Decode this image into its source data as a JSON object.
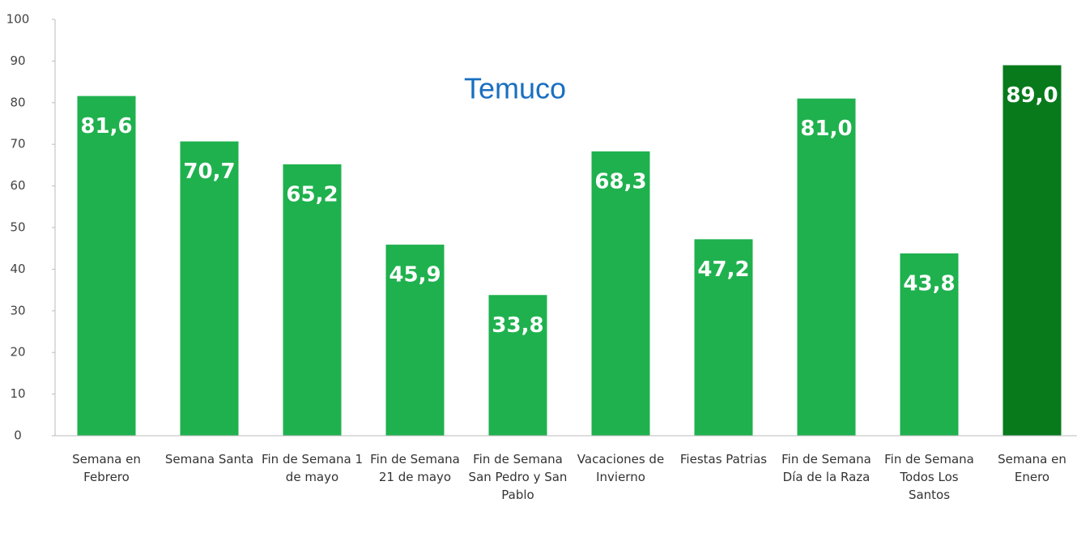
{
  "chart_data": {
    "type": "bar",
    "title": "Temuco",
    "categories": [
      "Semana en Febrero",
      "Semana Santa",
      "Fin de Semana 1 de mayo",
      "Fin de Semana 21 de mayo",
      "Fin de Semana San Pedro y San Pablo",
      "Vacaciones de Invierno",
      "Fiestas Patrias",
      "Fin de Semana Día de la Raza",
      "Fin de Semana Todos Los Santos",
      "Semana en Enero"
    ],
    "values": [
      81.6,
      70.7,
      65.2,
      45.9,
      33.8,
      68.3,
      47.2,
      81.0,
      43.8,
      89.0
    ],
    "value_labels": [
      "81,6",
      "70,7",
      "65,2",
      "45,9",
      "33,8",
      "68,3",
      "47,2",
      "81,0",
      "43,8",
      "89,0"
    ],
    "colors": [
      "#1fb14e",
      "#1fb14e",
      "#1fb14e",
      "#1fb14e",
      "#1fb14e",
      "#1fb14e",
      "#1fb14e",
      "#1fb14e",
      "#1fb14e",
      "#087a1c"
    ],
    "ylim": [
      0,
      100
    ],
    "yticks": [
      0,
      10,
      20,
      30,
      40,
      50,
      60,
      70,
      80,
      90,
      100
    ],
    "grid": false
  }
}
